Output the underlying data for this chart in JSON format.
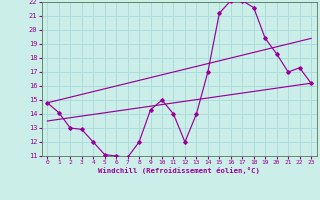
{
  "xlabel": "Windchill (Refroidissement éolien,°C)",
  "bg_color": "#cceee8",
  "line_color": "#990099",
  "grid_color": "#aadddd",
  "xlim": [
    -0.5,
    23.5
  ],
  "ylim": [
    11,
    22
  ],
  "yticks": [
    11,
    12,
    13,
    14,
    15,
    16,
    17,
    18,
    19,
    20,
    21,
    22
  ],
  "xticks": [
    0,
    1,
    2,
    3,
    4,
    5,
    6,
    7,
    8,
    9,
    10,
    11,
    12,
    13,
    14,
    15,
    16,
    17,
    18,
    19,
    20,
    21,
    22,
    23
  ],
  "curve1_x": [
    0,
    1,
    2,
    3,
    4,
    5,
    6,
    7,
    8,
    9,
    10,
    11,
    12,
    13,
    14,
    15,
    16,
    17,
    18,
    19,
    20,
    21,
    22,
    23
  ],
  "curve1_y": [
    14.8,
    14.1,
    13.0,
    12.9,
    12.0,
    11.1,
    11.0,
    10.9,
    12.0,
    14.3,
    15.0,
    14.0,
    12.0,
    14.0,
    17.0,
    21.2,
    22.1,
    22.1,
    21.6,
    19.4,
    18.3,
    17.0,
    17.3,
    16.2
  ],
  "curve2_x": [
    0,
    23
  ],
  "curve2_y": [
    13.5,
    16.2
  ],
  "curve3_x": [
    0,
    23
  ],
  "curve3_y": [
    14.8,
    19.4
  ]
}
